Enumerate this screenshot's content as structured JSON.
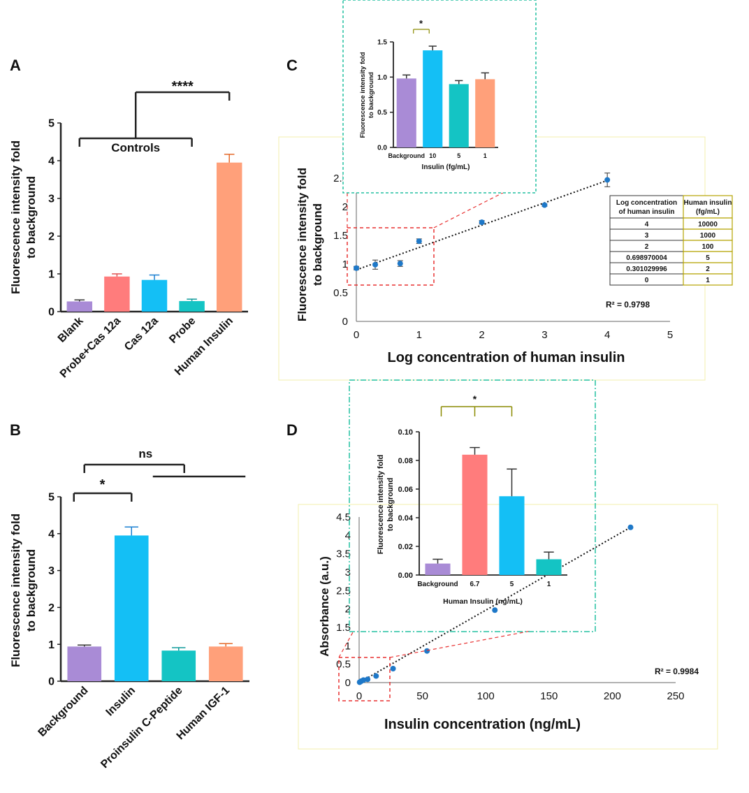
{
  "chart_data": [
    {
      "id": "A",
      "panel_label": "A",
      "type": "bar",
      "categories": [
        "Blank",
        "Probe+Cas 12a",
        "Cas 12a",
        "Probe",
        "Human Insulin"
      ],
      "values": [
        0.27,
        0.93,
        0.84,
        0.28,
        3.95
      ],
      "errors": [
        0.04,
        0.07,
        0.13,
        0.05,
        0.22
      ],
      "colors": [
        "#A98BD6",
        "#FF7C7C",
        "#14BFF5",
        "#14C4C4",
        "#FFA07A"
      ],
      "error_colors": [
        "#333333",
        "#E05050",
        "#1A7FD1",
        "#0E9A9A",
        "#E56A2A"
      ],
      "ylabel": "Fluorescence intensity fold to background",
      "ylim": [
        0,
        5
      ],
      "yticks": [
        "0",
        "1",
        "2",
        "3",
        "4",
        "5"
      ],
      "annotations": {
        "group_label": "Controls",
        "significance": "****"
      }
    },
    {
      "id": "B",
      "panel_label": "B",
      "type": "bar",
      "categories": [
        "Background",
        "Insulin",
        "Proinsulin C-Peptide",
        "Human IGF-1"
      ],
      "values": [
        0.94,
        3.95,
        0.83,
        0.94
      ],
      "errors": [
        0.04,
        0.23,
        0.08,
        0.08
      ],
      "colors": [
        "#A98BD6",
        "#14BFF5",
        "#14C4C4",
        "#FFA07A"
      ],
      "error_colors": [
        "#333333",
        "#1A7FD1",
        "#0E9A9A",
        "#E56A2A"
      ],
      "ylabel": "Fluorescence intensity fold to background",
      "ylim": [
        0,
        5
      ],
      "yticks": [
        "0",
        "1",
        "2",
        "3",
        "4",
        "5"
      ],
      "annotations": {
        "sig_star": "*",
        "sig_ns": "ns"
      }
    },
    {
      "id": "C",
      "panel_label": "C",
      "type": "scatter",
      "x": [
        0,
        0.30103,
        0.69897,
        1,
        2,
        3,
        4
      ],
      "y": [
        0.93,
        0.99,
        1.01,
        1.4,
        1.73,
        2.03,
        2.47
      ],
      "errors": [
        0.03,
        0.08,
        0.05,
        0.04,
        0.03,
        0.02,
        0.12
      ],
      "trendline": {
        "x0": 0,
        "y0": 0.9,
        "x1": 4,
        "y1": 2.46
      },
      "xlabel": "Log concentration of human insulin",
      "ylabel": "Fluorescence intensity fold to background",
      "xlim": [
        0,
        5
      ],
      "ylim": [
        0,
        3
      ],
      "xticks": [
        "0",
        "1",
        "2",
        "3",
        "4",
        "5"
      ],
      "yticks": [
        "0",
        "0.5",
        "1",
        "1.5",
        "2",
        "2.5",
        "3"
      ],
      "r2": "R² = 0.9798",
      "table": {
        "headers": [
          "Log concentration of human insulin",
          "Human insulin (fg/mL)"
        ],
        "rows": [
          [
            "4",
            "10000"
          ],
          [
            "3",
            "1000"
          ],
          [
            "2",
            "100"
          ],
          [
            "0.698970004",
            "5"
          ],
          [
            "0.301029996",
            "2"
          ],
          [
            "0",
            "1"
          ]
        ]
      },
      "inset": {
        "type": "bar",
        "categories": [
          "Background",
          "10",
          "5",
          "1"
        ],
        "values": [
          0.98,
          1.38,
          0.9,
          0.97
        ],
        "errors": [
          0.05,
          0.06,
          0.05,
          0.09
        ],
        "colors": [
          "#A98BD6",
          "#14BFF5",
          "#14C4C4",
          "#FFA07A"
        ],
        "xlabel": "Insulin (fg/mL)",
        "ylabel": "Fluorescence intensity fold to background",
        "ylim": [
          0,
          1.5
        ],
        "yticks": [
          "0.0",
          "0.5",
          "1.0",
          "1.5"
        ],
        "sig": "*"
      }
    },
    {
      "id": "D",
      "panel_label": "D",
      "type": "scatter",
      "x": [
        0.4,
        0.8,
        1.7,
        3.4,
        6.7,
        13.4,
        26.8,
        53.6,
        107.2,
        214.4
      ],
      "y": [
        0.01,
        0.02,
        0.04,
        0.07,
        0.09,
        0.18,
        0.38,
        0.86,
        1.97,
        4.22
      ],
      "trendline": {
        "x0": 0,
        "y0": 0.0,
        "x1": 214.4,
        "y1": 4.22
      },
      "xlabel": "Insulin concentration (ng/mL)",
      "ylabel": "Absorbance (a.u.)",
      "xlim": [
        0,
        250
      ],
      "ylim": [
        0,
        4.5
      ],
      "xticks": [
        "0",
        "50",
        "100",
        "150",
        "200",
        "250"
      ],
      "yticks": [
        "0",
        "0.5",
        "1",
        "1.5",
        "2",
        "2.5",
        "3",
        "3.5",
        "4",
        "4.5"
      ],
      "r2": "R² = 0.9984",
      "inset": {
        "type": "bar",
        "categories": [
          "Background",
          "6.7",
          "5",
          "1"
        ],
        "values": [
          0.008,
          0.084,
          0.055,
          0.011
        ],
        "errors": [
          0.003,
          0.005,
          0.019,
          0.005
        ],
        "colors": [
          "#A98BD6",
          "#FF7C7C",
          "#14BFF5",
          "#14C4C4"
        ],
        "xlabel": "Human Insulin (ng/mL)",
        "ylabel": "Fluorescence intensity fold to background",
        "ylim": [
          0,
          0.1
        ],
        "yticks": [
          "0.00",
          "0.02",
          "0.04",
          "0.06",
          "0.08",
          "0.10"
        ],
        "sig": "*"
      }
    }
  ]
}
